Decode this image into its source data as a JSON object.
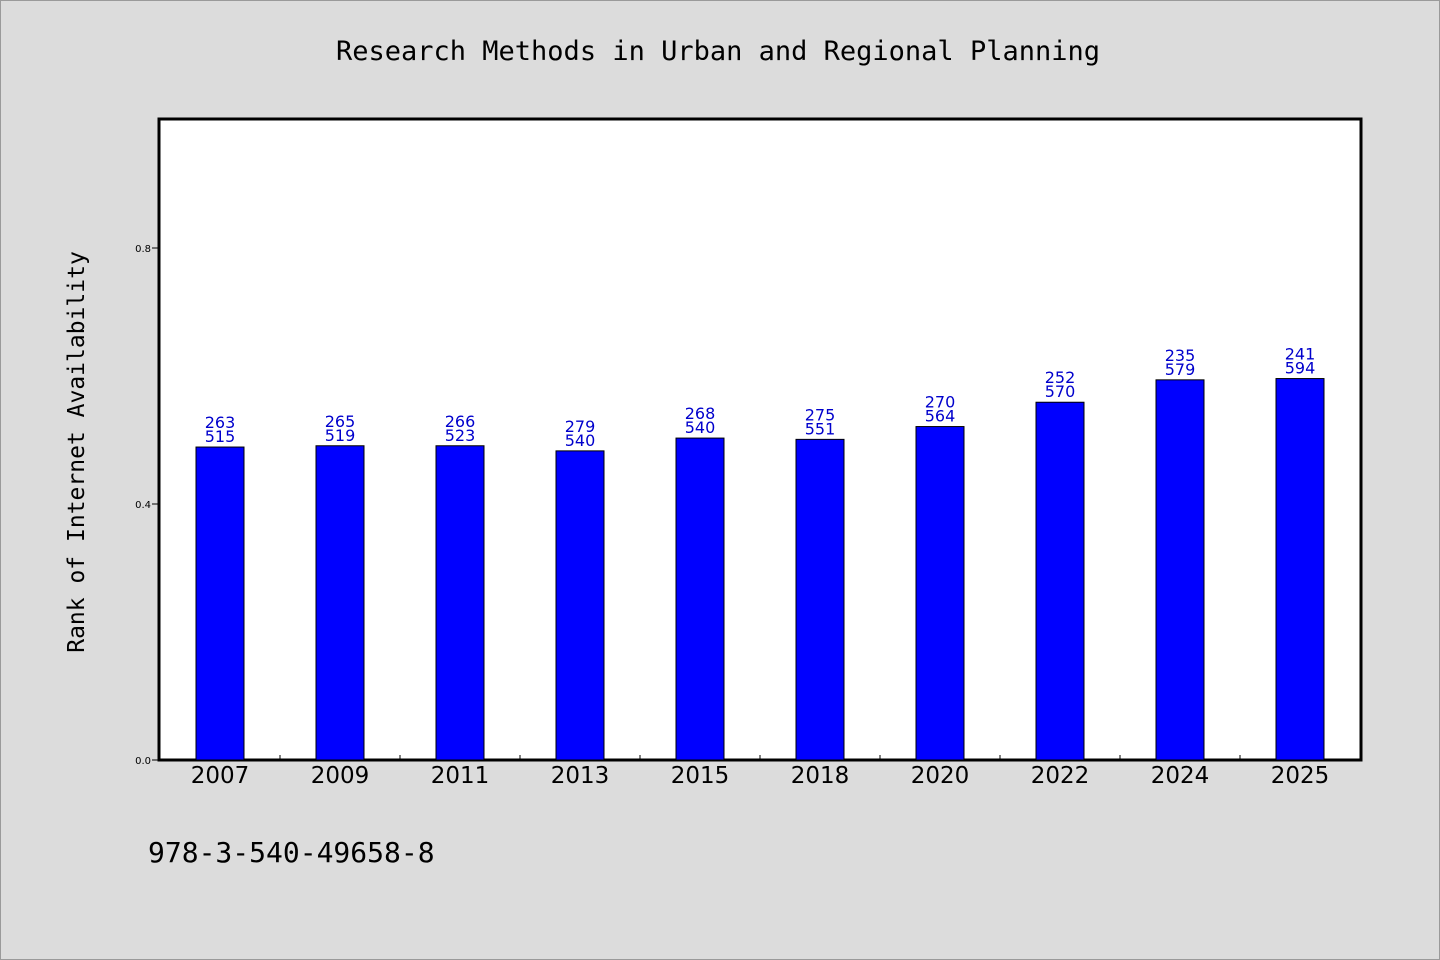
{
  "chart_data": {
    "type": "bar",
    "title": "Research Methods in Urban and Regional Planning",
    "xlabel": "",
    "ylabel": "Rank of Internet Availability",
    "ylim": [
      0.0,
      1.0
    ],
    "yticks": [
      0.0,
      0.4,
      0.8
    ],
    "ytick_labels": [
      "0.0",
      "0.4",
      "0.8"
    ],
    "categories": [
      "2007",
      "2009",
      "2011",
      "2013",
      "2015",
      "2018",
      "2020",
      "2022",
      "2024",
      "2025"
    ],
    "values": [
      0.489,
      0.491,
      0.491,
      0.483,
      0.503,
      0.501,
      0.521,
      0.559,
      0.594,
      0.596
    ],
    "data_labels": [
      [
        "263",
        "515"
      ],
      [
        "265",
        "519"
      ],
      [
        "266",
        "523"
      ],
      [
        "279",
        "540"
      ],
      [
        "268",
        "540"
      ],
      [
        "275",
        "551"
      ],
      [
        "270",
        "564"
      ],
      [
        "252",
        "570"
      ],
      [
        "235",
        "579"
      ],
      [
        "241",
        "594"
      ]
    ],
    "bar_color": "#0000ff",
    "label_color": "#0000cc",
    "grid": false,
    "legend": "none"
  },
  "footer": {
    "note": "978-3-540-49658-8"
  }
}
